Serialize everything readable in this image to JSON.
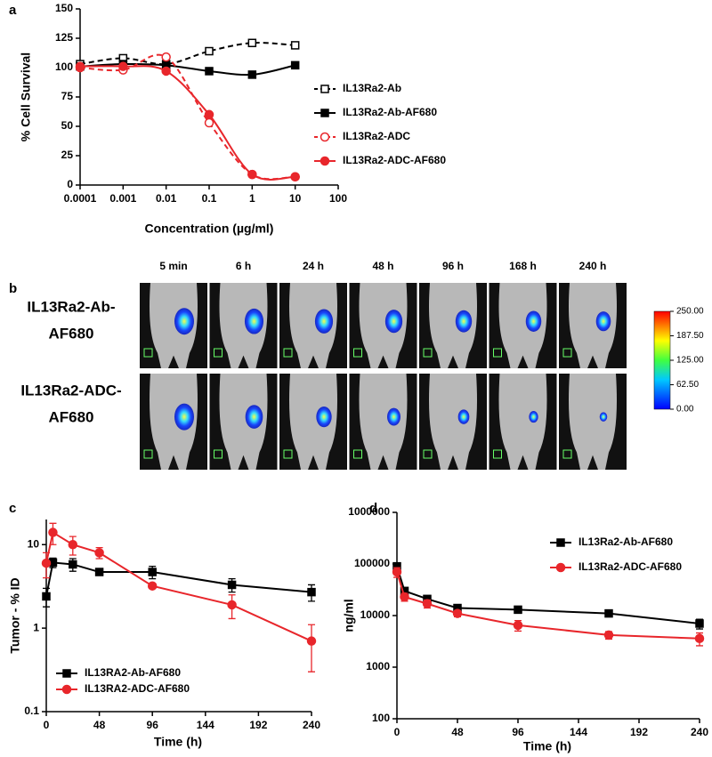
{
  "panel_labels": [
    "a",
    "b",
    "c",
    "d"
  ],
  "chart_data": [
    {
      "type": "line",
      "xscale": "log",
      "curve": "smooth",
      "x_label": "Concentration (µg/ml)",
      "y_label": "% Cell Survival",
      "x": [
        0.0001,
        0.001,
        0.01,
        0.1,
        1,
        10
      ],
      "xlim": [
        0.0001,
        100
      ],
      "xticks": [
        0.0001,
        0.001,
        0.01,
        0.1,
        1,
        10,
        100
      ],
      "ylim": [
        0,
        150
      ],
      "yticks": [
        0,
        25,
        50,
        75,
        100,
        125,
        150
      ],
      "legend": "right",
      "series": [
        {
          "name": "IL13Ra2-Ab",
          "color": "#000000",
          "marker": "square",
          "filled": false,
          "dash": true,
          "values": [
            103,
            108,
            103,
            114,
            121,
            119
          ]
        },
        {
          "name": "IL13Ra2-Ab-AF680",
          "color": "#000000",
          "marker": "square",
          "filled": true,
          "dash": false,
          "values": [
            101,
            103,
            102,
            97,
            94,
            102
          ]
        },
        {
          "name": "IL13Ra2-ADC",
          "color": "#e8262b",
          "marker": "circle",
          "filled": false,
          "dash": true,
          "values": [
            100,
            98,
            109,
            53,
            9,
            7
          ]
        },
        {
          "name": "IL13Ra2-ADC-AF680",
          "color": "#e8262b",
          "marker": "circle",
          "filled": true,
          "dash": false,
          "values": [
            101,
            101,
            97,
            60,
            9,
            7
          ]
        }
      ]
    },
    {
      "type": "line",
      "yscale": "log",
      "x_label": "Time (h)",
      "y_label": "Tumor - % ID",
      "x": [
        0,
        6,
        24,
        48,
        96,
        168,
        240
      ],
      "xlim": [
        0,
        240
      ],
      "xticks": [
        0,
        48,
        96,
        144,
        192,
        240
      ],
      "ylim": [
        0.1,
        20
      ],
      "yticks": [
        0.1,
        1,
        10
      ],
      "legend": "lower left",
      "series": [
        {
          "name": "IL13RA2-Ab-AF680",
          "color": "#000000",
          "marker": "square",
          "filled": true,
          "dash": false,
          "values": [
            2.4,
            6.1,
            5.8,
            4.7,
            4.7,
            3.3,
            2.7
          ],
          "errors": [
            0.6,
            0.8,
            1.0,
            0.3,
            0.8,
            0.6,
            0.6
          ]
        },
        {
          "name": "IL13RA2-ADC-AF680",
          "color": "#e8262b",
          "marker": "circle",
          "filled": true,
          "dash": false,
          "values": [
            6,
            14,
            10,
            8,
            3.2,
            1.9,
            0.7
          ],
          "errors": [
            2,
            4,
            2.5,
            1.2,
            0.2,
            0.6,
            0.4
          ]
        }
      ]
    },
    {
      "type": "line",
      "yscale": "log",
      "x_label": "Time (h)",
      "y_label": "ng/ml",
      "x": [
        0,
        6,
        24,
        48,
        96,
        168,
        240
      ],
      "xlim": [
        0,
        240
      ],
      "xticks": [
        0,
        48,
        96,
        144,
        192,
        240
      ],
      "ylim": [
        100,
        1000000
      ],
      "yticks": [
        100,
        1000,
        10000,
        100000,
        1000000
      ],
      "legend": "upper right",
      "series": [
        {
          "name": "IL13Ra2-Ab-AF680",
          "color": "#000000",
          "marker": "square",
          "filled": true,
          "dash": false,
          "values": [
            90000,
            30000,
            21000,
            14000,
            13000,
            11000,
            7000
          ],
          "errors": [
            8000,
            3000,
            2000,
            1500,
            1500,
            1500,
            1500
          ]
        },
        {
          "name": "IL13Ra2-ADC-AF680",
          "color": "#e8262b",
          "marker": "circle",
          "filled": true,
          "dash": false,
          "values": [
            70000,
            23000,
            17000,
            11000,
            6500,
            4200,
            3600
          ],
          "errors": [
            15000,
            4000,
            3000,
            1500,
            1500,
            700,
            1000
          ]
        }
      ]
    }
  ],
  "imaging": {
    "times": [
      "5 min",
      "6 h",
      "24 h",
      "48 h",
      "96 h",
      "168 h",
      "240 h"
    ],
    "rows": [
      {
        "lines": [
          "IL13Ra2-Ab-",
          "AF680"
        ]
      },
      {
        "lines": [
          "IL13Ra2-ADC-",
          "AF680"
        ]
      }
    ],
    "colorbar": {
      "lim": [
        0,
        250
      ],
      "ticks": [
        {
          "value": 250,
          "label": "250.00"
        },
        {
          "value": 187.5,
          "label": "187.50"
        },
        {
          "value": 125,
          "label": "125.00"
        },
        {
          "value": 62.5,
          "label": "62.50"
        },
        {
          "value": 0,
          "label": "0.00"
        }
      ]
    }
  }
}
